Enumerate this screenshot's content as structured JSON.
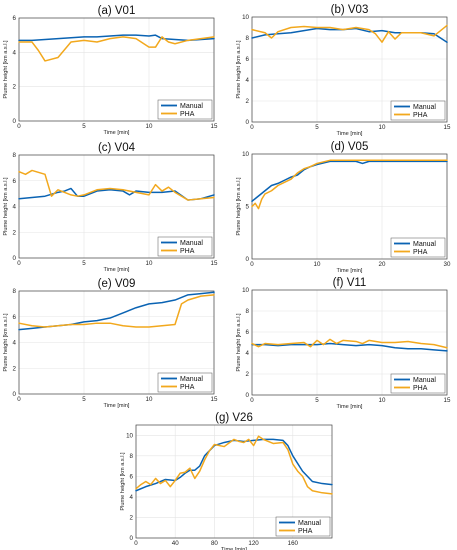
{
  "figure": {
    "colors": {
      "manual": "#0a63b3",
      "pha": "#f2a81d",
      "grid": "#e4e4e4"
    }
  },
  "chart_data": [
    {
      "type": "line",
      "title": "(a) V01",
      "xlabel": "Time [min]",
      "ylabel": "Plume height [km a.s.l.]",
      "xlim": [
        0,
        15
      ],
      "ylim": [
        0,
        6
      ],
      "xticks": [
        "0",
        "5",
        "10",
        "15"
      ],
      "yticks": [
        "0",
        "2",
        "4",
        "6"
      ],
      "legend": "bottom-right",
      "series": [
        {
          "name": "Manual",
          "x": [
            0,
            1,
            2,
            3,
            4,
            5,
            6,
            7,
            8,
            9,
            10,
            10.5,
            11,
            12,
            13,
            14,
            15
          ],
          "y": [
            4.7,
            4.7,
            4.75,
            4.8,
            4.85,
            4.9,
            4.9,
            4.95,
            5.0,
            5.0,
            4.95,
            5.0,
            4.8,
            4.75,
            4.7,
            4.75,
            4.8
          ]
        },
        {
          "name": "PHA",
          "x": [
            0,
            1,
            1.5,
            2,
            3,
            4,
            5,
            6,
            7,
            8,
            9,
            10,
            10.5,
            11,
            11.5,
            12,
            13,
            14,
            15
          ],
          "y": [
            4.6,
            4.6,
            4.1,
            3.5,
            3.7,
            4.6,
            4.7,
            4.6,
            4.8,
            4.9,
            4.8,
            4.3,
            4.3,
            4.9,
            4.6,
            4.5,
            4.7,
            4.8,
            4.9
          ]
        }
      ]
    },
    {
      "type": "line",
      "title": "(b) V03",
      "xlabel": "Time [min]",
      "ylabel": "Plume height [km a.s.l.]",
      "xlim": [
        0,
        15
      ],
      "ylim": [
        0,
        10
      ],
      "xticks": [
        "0",
        "5",
        "10",
        "15"
      ],
      "yticks": [
        "0",
        "2",
        "4",
        "6",
        "8",
        "10"
      ],
      "legend": "bottom-right",
      "series": [
        {
          "name": "Manual",
          "x": [
            0,
            1,
            2,
            3,
            4,
            5,
            6,
            7,
            8,
            9,
            10,
            11,
            12,
            13,
            14,
            15
          ],
          "y": [
            8.0,
            8.3,
            8.4,
            8.5,
            8.7,
            8.9,
            8.8,
            8.8,
            8.9,
            8.6,
            8.7,
            8.5,
            8.5,
            8.5,
            8.4,
            7.6
          ]
        },
        {
          "name": "PHA",
          "x": [
            0,
            1,
            1.5,
            2,
            3,
            4,
            5,
            6,
            7,
            8,
            9,
            9.5,
            10,
            10.5,
            11,
            11.5,
            12,
            13,
            14,
            15
          ],
          "y": [
            8.8,
            8.5,
            8.0,
            8.6,
            9.0,
            9.1,
            9.0,
            9.0,
            8.8,
            9.0,
            8.8,
            8.4,
            7.6,
            8.6,
            7.9,
            8.5,
            8.5,
            8.5,
            8.2,
            9.2
          ]
        }
      ]
    },
    {
      "type": "line",
      "title": "(c) V04",
      "xlabel": "Time [min]",
      "ylabel": "Plume height [km a.s.l.]",
      "xlim": [
        0,
        15
      ],
      "ylim": [
        0,
        8
      ],
      "xticks": [
        "0",
        "5",
        "10",
        "15"
      ],
      "yticks": [
        "0",
        "2",
        "4",
        "6",
        "8"
      ],
      "legend": "bottom-right",
      "series": [
        {
          "name": "Manual",
          "x": [
            0,
            1,
            2,
            3,
            3.5,
            4,
            4.5,
            5,
            6,
            7,
            8,
            8.5,
            9,
            10,
            11,
            12,
            13,
            14,
            15
          ],
          "y": [
            4.6,
            4.7,
            4.8,
            5.1,
            5.2,
            5.4,
            4.8,
            4.8,
            5.2,
            5.3,
            5.2,
            4.9,
            5.2,
            5.1,
            5.1,
            5.2,
            4.5,
            4.6,
            4.9
          ]
        },
        {
          "name": "PHA",
          "x": [
            0,
            0.5,
            1,
            2,
            2.5,
            3,
            4,
            4.5,
            5,
            6,
            7,
            8,
            9,
            10,
            10.5,
            11,
            11.5,
            12,
            13,
            14,
            15
          ],
          "y": [
            6.7,
            6.5,
            6.8,
            6.5,
            4.8,
            5.3,
            4.9,
            4.8,
            4.9,
            5.3,
            5.4,
            5.3,
            5.1,
            4.9,
            5.7,
            5.2,
            5.5,
            5.1,
            4.5,
            4.6,
            4.7
          ]
        }
      ]
    },
    {
      "type": "line",
      "title": "(d) V05",
      "xlabel": "Time [min]",
      "ylabel": "Plume height [km a.s.l.]",
      "xlim": [
        0,
        30
      ],
      "ylim": [
        0,
        10
      ],
      "xticks": [
        "0",
        "10",
        "20",
        "30"
      ],
      "yticks": [
        "0",
        "5",
        "10"
      ],
      "legend": "bottom-right",
      "series": [
        {
          "name": "Manual",
          "x": [
            0,
            1,
            2,
            3,
            4,
            5,
            6,
            7,
            8,
            9,
            10,
            12,
            14,
            16,
            17,
            18,
            20,
            25,
            30
          ],
          "y": [
            5.5,
            6.0,
            6.5,
            7.0,
            7.2,
            7.5,
            7.8,
            8.0,
            8.5,
            8.8,
            9.0,
            9.3,
            9.3,
            9.3,
            9.1,
            9.3,
            9.3,
            9.3,
            9.3
          ]
        },
        {
          "name": "PHA",
          "x": [
            0,
            0.5,
            1,
            1.5,
            2,
            3,
            4,
            5,
            6,
            7,
            8,
            9,
            10,
            12,
            14,
            16,
            18,
            20,
            25,
            30
          ],
          "y": [
            5.0,
            5.3,
            4.8,
            5.7,
            6.2,
            6.5,
            7.0,
            7.3,
            7.6,
            8.2,
            8.6,
            8.8,
            9.1,
            9.4,
            9.4,
            9.4,
            9.4,
            9.4,
            9.4,
            9.4
          ]
        }
      ]
    },
    {
      "type": "line",
      "title": "(e) V09",
      "xlabel": "Time [min]",
      "ylabel": "Plume height [km a.s.l.]",
      "xlim": [
        0,
        15
      ],
      "ylim": [
        0,
        8
      ],
      "xticks": [
        "0",
        "5",
        "10",
        "15"
      ],
      "yticks": [
        "0",
        "2",
        "4",
        "6",
        "8"
      ],
      "legend": "bottom-right",
      "series": [
        {
          "name": "Manual",
          "x": [
            0,
            1,
            2,
            3,
            4,
            5,
            6,
            7,
            8,
            9,
            10,
            11,
            12,
            13,
            14,
            15
          ],
          "y": [
            5.0,
            5.1,
            5.2,
            5.3,
            5.4,
            5.6,
            5.7,
            5.9,
            6.3,
            6.7,
            7.0,
            7.1,
            7.3,
            7.7,
            7.8,
            7.9
          ]
        },
        {
          "name": "PHA",
          "x": [
            0,
            1,
            2,
            3,
            4,
            5,
            6,
            7,
            8,
            9,
            10,
            11,
            12,
            12.5,
            13,
            14,
            15
          ],
          "y": [
            5.5,
            5.3,
            5.2,
            5.3,
            5.4,
            5.4,
            5.5,
            5.5,
            5.3,
            5.2,
            5.2,
            5.3,
            5.4,
            7.0,
            7.3,
            7.6,
            7.7
          ]
        }
      ]
    },
    {
      "type": "line",
      "title": "(f) V11",
      "xlabel": "Time [min]",
      "ylabel": "Plume height [km a.s.l.]",
      "xlim": [
        0,
        15
      ],
      "ylim": [
        0,
        10
      ],
      "xticks": [
        "0",
        "5",
        "10",
        "15"
      ],
      "yticks": [
        "0",
        "2",
        "4",
        "6",
        "8",
        "10"
      ],
      "legend": "bottom-right",
      "series": [
        {
          "name": "Manual",
          "x": [
            0,
            1,
            2,
            3,
            4,
            5,
            6,
            7,
            8,
            9,
            10,
            11,
            12,
            13,
            14,
            15
          ],
          "y": [
            4.8,
            4.8,
            4.7,
            4.8,
            4.8,
            4.8,
            4.9,
            4.8,
            4.7,
            4.8,
            4.7,
            4.5,
            4.4,
            4.4,
            4.3,
            4.2
          ]
        },
        {
          "name": "PHA",
          "x": [
            0,
            0.5,
            1,
            2,
            3,
            4,
            4.5,
            5,
            5.5,
            6,
            6.5,
            7,
            8,
            8.5,
            9,
            10,
            11,
            12,
            13,
            14,
            15
          ],
          "y": [
            4.9,
            4.6,
            4.9,
            4.8,
            4.9,
            5.0,
            4.6,
            5.2,
            4.8,
            5.3,
            4.9,
            5.2,
            5.1,
            4.9,
            5.2,
            5.0,
            5.0,
            5.1,
            4.9,
            4.8,
            4.5
          ]
        }
      ]
    },
    {
      "type": "line",
      "title": "(g) V26",
      "xlabel": "Time [min]",
      "ylabel": "Plume height [km a.s.l.]",
      "xlim": [
        0,
        200
      ],
      "ylim": [
        0,
        11
      ],
      "xticks": [
        "0",
        "40",
        "80",
        "120",
        "160"
      ],
      "yticks": [
        "0",
        "2",
        "4",
        "6",
        "8",
        "10"
      ],
      "legend": "bottom-right",
      "series": [
        {
          "name": "Manual",
          "x": [
            0,
            10,
            20,
            30,
            40,
            45,
            50,
            55,
            60,
            65,
            70,
            80,
            90,
            100,
            110,
            120,
            130,
            140,
            150,
            155,
            160,
            170,
            180,
            190,
            200
          ],
          "y": [
            4.6,
            5.0,
            5.3,
            5.7,
            5.6,
            5.9,
            6.3,
            6.6,
            6.6,
            7.0,
            8.0,
            9.0,
            9.3,
            9.5,
            9.4,
            9.5,
            9.6,
            9.6,
            9.5,
            9.0,
            8.0,
            6.5,
            5.5,
            5.3,
            5.2
          ]
        },
        {
          "name": "PHA",
          "x": [
            0,
            5,
            10,
            15,
            20,
            25,
            30,
            35,
            40,
            45,
            50,
            55,
            60,
            65,
            70,
            75,
            80,
            90,
            100,
            105,
            110,
            115,
            120,
            125,
            130,
            140,
            150,
            155,
            160,
            165,
            170,
            175,
            180,
            190,
            200
          ],
          "y": [
            4.8,
            5.2,
            5.5,
            5.2,
            5.8,
            5.3,
            5.6,
            5.0,
            5.6,
            6.3,
            6.4,
            6.8,
            5.8,
            6.5,
            7.6,
            8.5,
            9.1,
            8.9,
            9.6,
            9.4,
            9.3,
            9.6,
            9.0,
            9.9,
            9.6,
            9.2,
            9.3,
            8.6,
            7.2,
            6.5,
            6.0,
            5.0,
            4.6,
            4.4,
            4.3
          ]
        }
      ]
    }
  ]
}
